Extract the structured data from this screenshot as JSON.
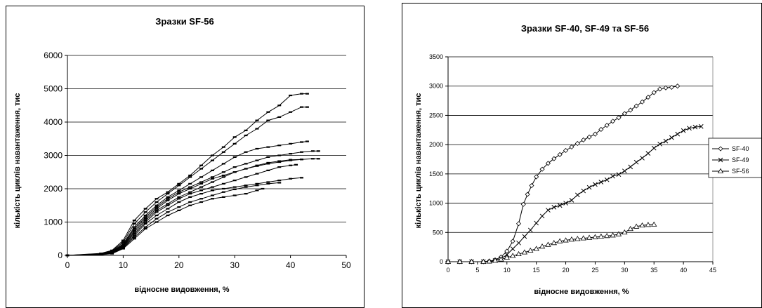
{
  "chart_data": [
    {
      "type": "line",
      "title": "Зразки SF-56",
      "xlabel": "відносне видовження, %",
      "ylabel": "кількість циклів навантаження, тис",
      "xlim": [
        0,
        50
      ],
      "ylim": [
        0,
        6000
      ],
      "xticks": [
        0,
        10,
        20,
        30,
        40,
        50
      ],
      "yticks": [
        0,
        1000,
        2000,
        3000,
        4000,
        5000,
        6000
      ],
      "grid": "horizontal",
      "legend": "none",
      "series": [
        {
          "x": [
            0,
            6,
            8,
            10,
            12,
            14,
            16,
            18,
            20,
            22,
            24,
            26,
            28,
            30,
            32,
            34,
            36,
            38,
            40,
            42,
            43
          ],
          "values": [
            0,
            60,
            150,
            450,
            1050,
            1400,
            1700,
            1900,
            2150,
            2400,
            2700,
            3000,
            3250,
            3550,
            3750,
            4050,
            4300,
            4500,
            4800,
            4850,
            4850
          ]
        },
        {
          "x": [
            0,
            6,
            8,
            10,
            12,
            14,
            16,
            18,
            20,
            22,
            24,
            26,
            28,
            30,
            32,
            34,
            36,
            38,
            40,
            42,
            43
          ],
          "values": [
            0,
            50,
            130,
            400,
            950,
            1300,
            1600,
            1850,
            2100,
            2350,
            2600,
            2850,
            3100,
            3350,
            3600,
            3800,
            4050,
            4150,
            4300,
            4450,
            4450
          ]
        },
        {
          "x": [
            0,
            6,
            8,
            10,
            12,
            14,
            16,
            18,
            20,
            22,
            24,
            26,
            28,
            30,
            32,
            34,
            36,
            38,
            40,
            42,
            43
          ],
          "values": [
            0,
            40,
            120,
            350,
            850,
            1200,
            1500,
            1750,
            1950,
            2150,
            2350,
            2550,
            2750,
            2950,
            3100,
            3200,
            3250,
            3300,
            3350,
            3400,
            3420
          ]
        },
        {
          "x": [
            0,
            6,
            8,
            10,
            12,
            14,
            16,
            18,
            20,
            22,
            24,
            26,
            28,
            30,
            32,
            34,
            36,
            38,
            40,
            42,
            44,
            45
          ],
          "values": [
            0,
            40,
            110,
            320,
            800,
            1150,
            1450,
            1700,
            1900,
            2050,
            2200,
            2350,
            2500,
            2650,
            2750,
            2850,
            2950,
            3000,
            3050,
            3100,
            3130,
            3130
          ]
        },
        {
          "x": [
            0,
            6,
            8,
            10,
            12,
            14,
            16,
            18,
            20,
            22,
            24,
            26,
            28,
            30,
            32,
            34,
            36,
            38,
            40,
            42,
            44,
            45
          ],
          "values": [
            0,
            35,
            100,
            300,
            750,
            1100,
            1400,
            1650,
            1850,
            2000,
            2150,
            2300,
            2400,
            2500,
            2600,
            2680,
            2750,
            2800,
            2850,
            2880,
            2900,
            2900
          ]
        },
        {
          "x": [
            0,
            6,
            8,
            10,
            12,
            14,
            16,
            18,
            20,
            22,
            24,
            26,
            28,
            30,
            32,
            34,
            36,
            38,
            40,
            42
          ],
          "values": [
            0,
            30,
            90,
            280,
            700,
            1050,
            1350,
            1550,
            1750,
            1900,
            2050,
            2200,
            2350,
            2500,
            2600,
            2700,
            2780,
            2830,
            2870,
            2880
          ]
        },
        {
          "x": [
            0,
            6,
            8,
            10,
            12,
            14,
            16,
            18,
            20,
            22,
            24,
            26,
            28,
            30,
            32,
            34,
            36,
            38,
            40,
            41
          ],
          "values": [
            0,
            30,
            80,
            260,
            650,
            1000,
            1300,
            1500,
            1700,
            1850,
            1950,
            2050,
            2150,
            2250,
            2350,
            2450,
            2550,
            2650,
            2700,
            2720
          ]
        },
        {
          "x": [
            0,
            6,
            8,
            10,
            12,
            14,
            16,
            18,
            20,
            22,
            24,
            26,
            28,
            30,
            32,
            34,
            36,
            38,
            40,
            42
          ],
          "values": [
            0,
            25,
            70,
            240,
            600,
            950,
            1200,
            1400,
            1600,
            1750,
            1850,
            1950,
            2000,
            2050,
            2100,
            2150,
            2200,
            2250,
            2300,
            2330
          ]
        },
        {
          "x": [
            0,
            6,
            8,
            10,
            12,
            14,
            16,
            18,
            20,
            22,
            24,
            26,
            28,
            30,
            32,
            34,
            36,
            38
          ],
          "values": [
            0,
            20,
            60,
            220,
            550,
            850,
            1100,
            1300,
            1450,
            1600,
            1700,
            1800,
            1900,
            1980,
            2050,
            2100,
            2150,
            2180
          ]
        },
        {
          "x": [
            0,
            6,
            8,
            10,
            12,
            14,
            16,
            18,
            20,
            22,
            24,
            26,
            28,
            30,
            32,
            34,
            35
          ],
          "values": [
            0,
            20,
            50,
            200,
            500,
            800,
            1000,
            1200,
            1350,
            1500,
            1600,
            1700,
            1750,
            1800,
            1850,
            1950,
            2000
          ]
        }
      ]
    },
    {
      "type": "line",
      "title": "Зразки SF-40, SF-49 та SF-56",
      "xlabel": "відносне видовження, %",
      "ylabel": "кількість циклів навантаження, тис",
      "xlim": [
        0,
        45
      ],
      "ylim": [
        0,
        3500
      ],
      "xticks": [
        0,
        5,
        10,
        15,
        20,
        25,
        30,
        35,
        40,
        45
      ],
      "yticks": [
        0,
        500,
        1000,
        1500,
        2000,
        2500,
        3000,
        3500
      ],
      "grid": "horizontal",
      "legend": "right",
      "series": [
        {
          "name": "SF-40",
          "marker": "diamond",
          "x": [
            0,
            2,
            4,
            6,
            7,
            8,
            9,
            10,
            11,
            12,
            12.8,
            13.5,
            14.2,
            15,
            16,
            17,
            18,
            19,
            20,
            21,
            22,
            23,
            24,
            25,
            26,
            27,
            28,
            29,
            30,
            31,
            32,
            33,
            34,
            35,
            36,
            37,
            38,
            39
          ],
          "values": [
            0,
            0,
            0,
            0,
            10,
            30,
            80,
            180,
            350,
            650,
            980,
            1150,
            1300,
            1450,
            1580,
            1680,
            1760,
            1830,
            1900,
            1960,
            2020,
            2080,
            2130,
            2180,
            2260,
            2330,
            2400,
            2460,
            2530,
            2590,
            2660,
            2730,
            2810,
            2890,
            2950,
            2970,
            2980,
            3000
          ]
        },
        {
          "name": "SF-49",
          "marker": "x",
          "x": [
            0,
            2,
            4,
            6,
            8,
            9,
            10,
            11,
            12,
            13,
            14,
            15,
            16,
            17,
            18,
            19,
            20,
            21,
            22,
            23,
            24,
            25,
            26,
            27,
            28,
            29,
            30,
            31,
            32,
            33,
            34,
            35,
            36,
            37,
            38,
            39,
            40,
            41,
            42,
            43
          ],
          "values": [
            0,
            0,
            0,
            0,
            20,
            50,
            120,
            220,
            320,
            430,
            540,
            660,
            780,
            880,
            930,
            960,
            1000,
            1050,
            1140,
            1210,
            1270,
            1320,
            1360,
            1400,
            1460,
            1490,
            1550,
            1620,
            1700,
            1770,
            1850,
            1940,
            2010,
            2060,
            2120,
            2180,
            2240,
            2280,
            2300,
            2310
          ]
        },
        {
          "name": "SF-56",
          "marker": "triangle",
          "x": [
            0,
            2,
            4,
            6,
            7,
            8,
            9,
            10,
            11,
            12,
            13,
            14,
            15,
            16,
            17,
            18,
            19,
            20,
            21,
            22,
            23,
            24,
            25,
            26,
            27,
            28,
            29,
            30,
            31,
            32,
            33,
            34,
            35
          ],
          "values": [
            0,
            0,
            0,
            0,
            5,
            20,
            40,
            70,
            100,
            130,
            160,
            190,
            220,
            260,
            290,
            320,
            350,
            365,
            380,
            390,
            400,
            410,
            420,
            430,
            440,
            450,
            470,
            500,
            560,
            600,
            620,
            630,
            635
          ]
        }
      ]
    }
  ]
}
